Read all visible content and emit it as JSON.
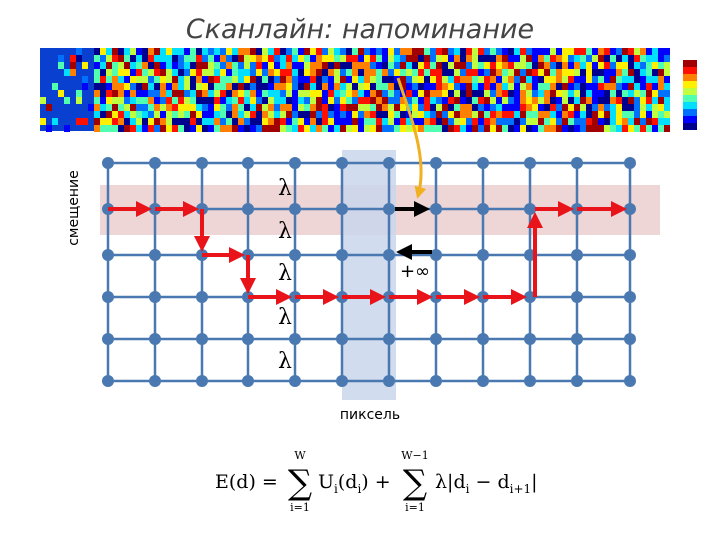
{
  "header": {
    "title": "Сканлайн: напоминание"
  },
  "diagram": {
    "y_label": "смещение",
    "x_label": "пиксель",
    "edge_labels": [
      "λ",
      "λ",
      "λ",
      "λ",
      "λ"
    ],
    "infinity_label": "+∞"
  },
  "formula": {
    "lhs": "E(d) = ",
    "sum1_top": "W",
    "sum1_bottom": "i=1",
    "sum2_top": "W−1",
    "sum2_bottom": "i=1",
    "term1": "U",
    "term1_sub": "i",
    "term1_arg": "(d",
    "term1_arg_sub": "i",
    "term1_close": ") + ",
    "term2": "λ|d",
    "term2_sub": "i",
    "term2_mid": " − d",
    "term2_sub2": "i+1",
    "term2_close": "|"
  }
}
